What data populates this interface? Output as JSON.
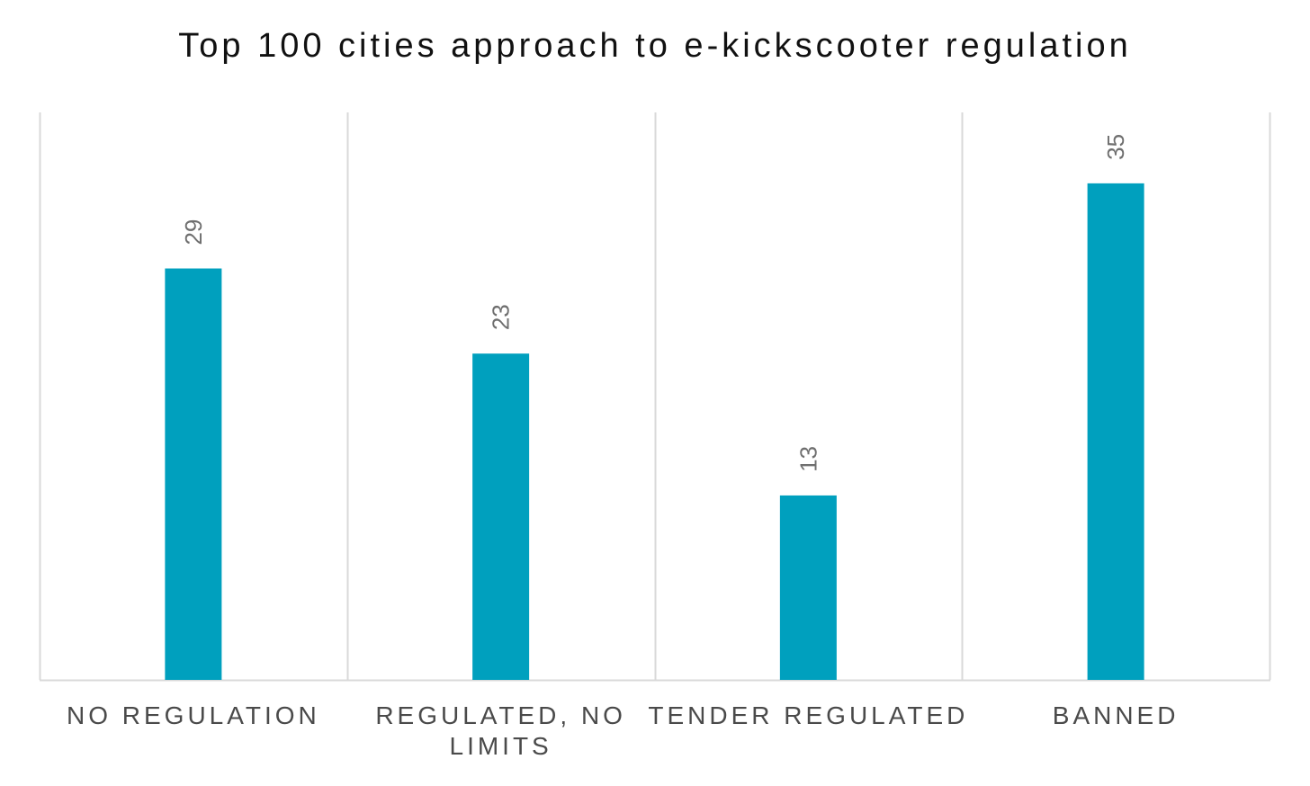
{
  "chart_data": {
    "type": "bar",
    "title": "Top 100 cities approach to e-kickscooter regulation",
    "categories": [
      "NO REGULATION",
      "REGULATED, NO LIMITS",
      "TENDER REGULATED",
      "BANNED"
    ],
    "category_lines": [
      [
        "NO REGULATION"
      ],
      [
        "REGULATED, NO",
        "LIMITS"
      ],
      [
        "TENDER REGULATED"
      ],
      [
        "BANNED"
      ]
    ],
    "values": [
      29,
      23,
      13,
      35
    ],
    "data_labels": [
      "29",
      "23",
      "13",
      "35"
    ],
    "xlabel": "",
    "ylabel": "",
    "ylim": [
      0,
      40
    ],
    "grid": "vertical category separators",
    "legend": "none",
    "bar_color": "#00a0be",
    "separator_color": "#d9d9d9",
    "axis_color": "#d9d9d9",
    "label_color": "#6f6f6f"
  }
}
